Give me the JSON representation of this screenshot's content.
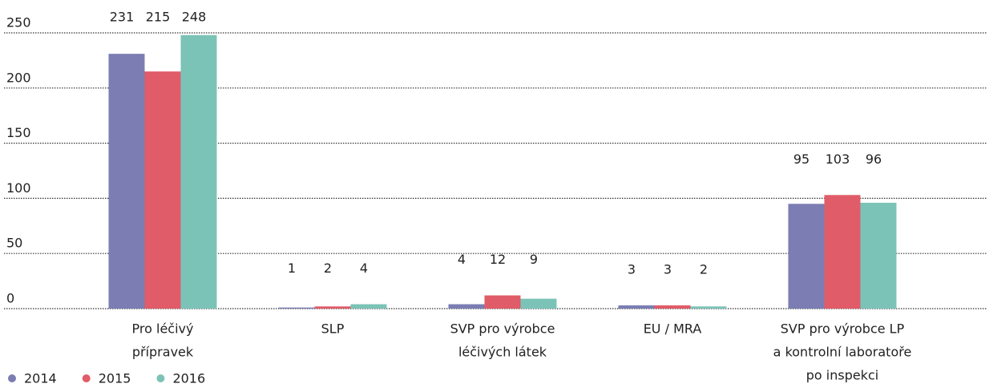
{
  "chart_data": {
    "type": "bar",
    "categories": [
      [
        "Pro léčivý",
        "přípravek"
      ],
      [
        "SLP"
      ],
      [
        "SVP pro výrobce",
        "léčivých látek"
      ],
      [
        "EU / MRA"
      ],
      [
        "SVP pro výrobce LP",
        "a kontrolní laboratoře",
        "po inspekci"
      ]
    ],
    "series": [
      {
        "name": "2014",
        "color": "#7b7db3",
        "values": [
          231,
          1,
          4,
          3,
          95
        ]
      },
      {
        "name": "2015",
        "color": "#e05c68",
        "values": [
          215,
          2,
          12,
          3,
          103
        ]
      },
      {
        "name": "2016",
        "color": "#7cc3b7",
        "values": [
          248,
          4,
          9,
          2,
          96
        ]
      }
    ],
    "ylim": [
      0,
      250
    ],
    "yticks": [
      0,
      50,
      100,
      150,
      200,
      250
    ],
    "grid": true,
    "legend": "bottom-left"
  }
}
